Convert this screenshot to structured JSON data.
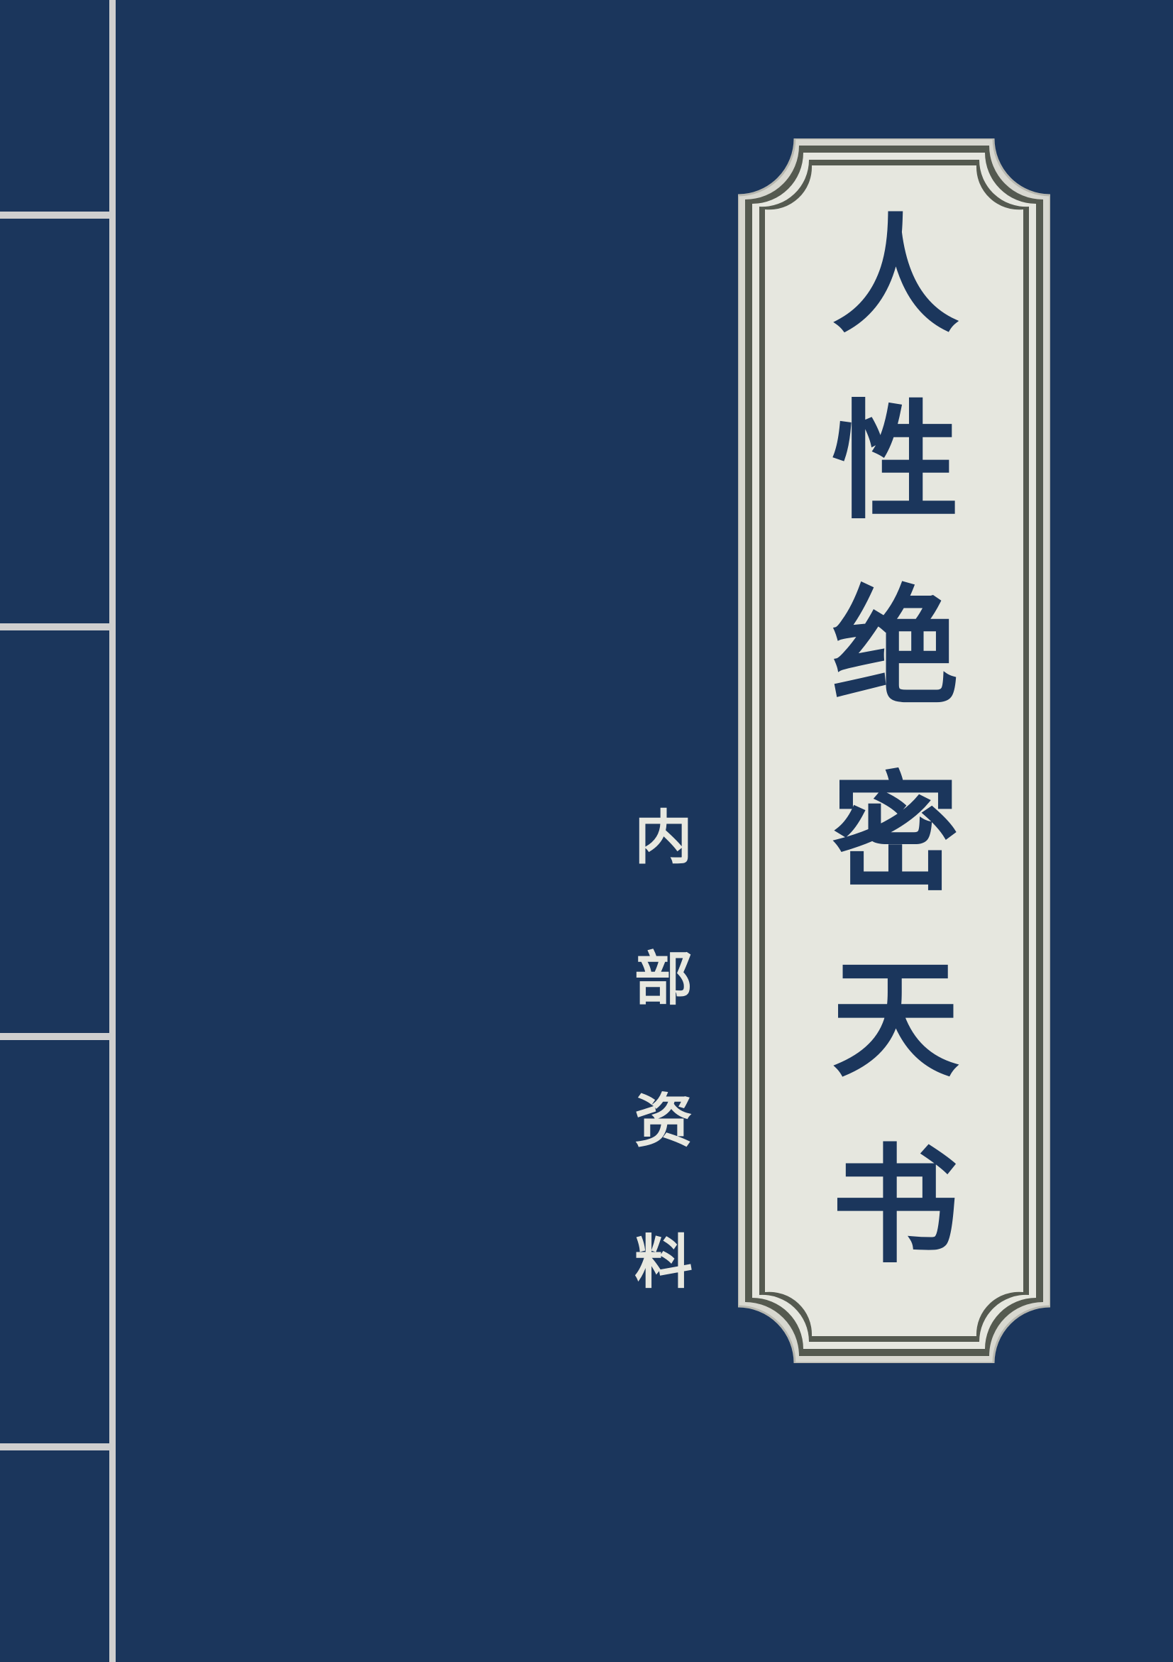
{
  "cover": {
    "title": "人性绝密天书",
    "title_chars": [
      "人",
      "性",
      "绝",
      "密",
      "天",
      "书"
    ],
    "subtitle": "内部资料",
    "subtitle_chars": [
      "内",
      "部",
      "资",
      "料"
    ]
  },
  "colors": {
    "background": "#1b365c",
    "label_fill": "#e6e7df",
    "label_border": "#555a50",
    "stitch": "#cfcfcf",
    "title_text": "#1b365c",
    "subtitle_text": "#e8e8e0"
  }
}
